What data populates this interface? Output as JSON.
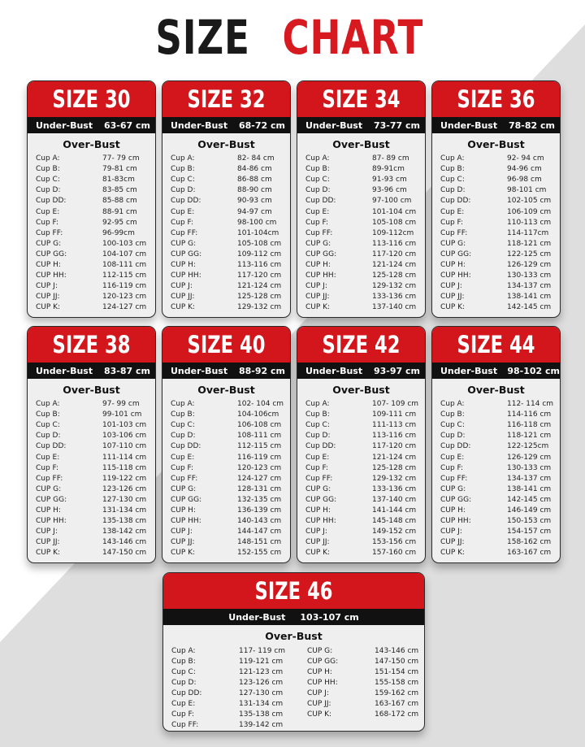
{
  "header": {
    "title_1": "SIZE",
    "title_2": "CHART"
  },
  "cards": [
    {
      "title": "SIZE 30",
      "under_bust_label": "Under-Bust",
      "under_bust": "63-67 cm",
      "over_bust_label": "Over-Bust",
      "rows": [
        [
          "Cup A:",
          "77- 79 cm"
        ],
        [
          "Cup B:",
          "79-81 cm"
        ],
        [
          "Cup C:",
          "81-83cm"
        ],
        [
          "Cup D:",
          "83-85 cm"
        ],
        [
          "Cup DD:",
          "85-88 cm"
        ],
        [
          "Cup E:",
          "88-91 cm"
        ],
        [
          "Cup F:",
          "92-95 cm"
        ],
        [
          "Cup FF:",
          "96-99cm"
        ],
        [
          "CUP G:",
          "100-103 cm"
        ],
        [
          "CUP GG:",
          "104-107 cm"
        ],
        [
          "CUP H:",
          "108-111 cm"
        ],
        [
          "CUP HH:",
          "112-115 cm"
        ],
        [
          "CUP J:",
          "116-119 cm"
        ],
        [
          "CUP JJ:",
          "120-123 cm"
        ],
        [
          "CUP K:",
          "124-127 cm"
        ]
      ]
    },
    {
      "title": "SIZE 32",
      "under_bust_label": "Under-Bust",
      "under_bust": "68-72 cm",
      "over_bust_label": "Over-Bust",
      "rows": [
        [
          "Cup A:",
          "82- 84 cm"
        ],
        [
          "Cup B:",
          "84-86 cm"
        ],
        [
          "Cup C:",
          "86-88 cm"
        ],
        [
          "Cup D:",
          "88-90 cm"
        ],
        [
          "Cup DD:",
          "90-93 cm"
        ],
        [
          "Cup E:",
          "94-97 cm"
        ],
        [
          "Cup F:",
          "98-100 cm"
        ],
        [
          "Cup FF:",
          "101-104cm"
        ],
        [
          "CUP G:",
          "105-108 cm"
        ],
        [
          "CUP GG:",
          "109-112 cm"
        ],
        [
          "CUP H:",
          "113-116 cm"
        ],
        [
          "CUP HH:",
          "117-120 cm"
        ],
        [
          "CUP J:",
          "121-124 cm"
        ],
        [
          "CUP JJ:",
          "125-128 cm"
        ],
        [
          "CUP K:",
          "129-132 cm"
        ]
      ]
    },
    {
      "title": "SIZE 34",
      "under_bust_label": "Under-Bust",
      "under_bust": "73-77 cm",
      "over_bust_label": "Over-Bust",
      "rows": [
        [
          "Cup A:",
          "87- 89 cm"
        ],
        [
          "Cup B:",
          "89-91cm"
        ],
        [
          "Cup C:",
          "91-93 cm"
        ],
        [
          "Cup D:",
          "93-96 cm"
        ],
        [
          "Cup DD:",
          "97-100 cm"
        ],
        [
          "Cup E:",
          "101-104 cm"
        ],
        [
          "Cup F:",
          "105-108 cm"
        ],
        [
          "Cup FF:",
          "109-112cm"
        ],
        [
          "CUP G:",
          "113-116 cm"
        ],
        [
          "CUP GG:",
          "117-120 cm"
        ],
        [
          "CUP H:",
          "121-124 cm"
        ],
        [
          "CUP HH:",
          "125-128 cm"
        ],
        [
          "CUP J:",
          "129-132 cm"
        ],
        [
          "CUP JJ:",
          "133-136 cm"
        ],
        [
          "CUP K:",
          "137-140 cm"
        ]
      ]
    },
    {
      "title": "SIZE 36",
      "under_bust_label": "Under-Bust",
      "under_bust": "78-82 cm",
      "over_bust_label": "Over-Bust",
      "rows": [
        [
          "Cup A:",
          "92- 94 cm"
        ],
        [
          "Cup B:",
          "94-96 cm"
        ],
        [
          "Cup C:",
          "96-98 cm"
        ],
        [
          "Cup D:",
          "98-101 cm"
        ],
        [
          "Cup DD:",
          "102-105 cm"
        ],
        [
          "Cup E:",
          "106-109 cm"
        ],
        [
          "Cup F:",
          "110-113 cm"
        ],
        [
          "Cup FF:",
          "114-117cm"
        ],
        [
          "CUP G:",
          "118-121 cm"
        ],
        [
          "CUP GG:",
          "122-125 cm"
        ],
        [
          "CUP H:",
          "126-129 cm"
        ],
        [
          "CUP HH:",
          "130-133 cm"
        ],
        [
          "CUP J:",
          "134-137 cm"
        ],
        [
          "CUP JJ:",
          "138-141 cm"
        ],
        [
          "CUP K:",
          "142-145 cm"
        ]
      ]
    },
    {
      "title": "SIZE 38",
      "under_bust_label": "Under-Bust",
      "under_bust": "83-87 cm",
      "over_bust_label": "Over-Bust",
      "rows": [
        [
          "Cup A:",
          "97- 99 cm"
        ],
        [
          "Cup B:",
          "99-101 cm"
        ],
        [
          "Cup C:",
          "101-103 cm"
        ],
        [
          "Cup D:",
          "103-106 cm"
        ],
        [
          "Cup DD:",
          "107-110 cm"
        ],
        [
          "Cup E:",
          "111-114 cm"
        ],
        [
          "Cup F:",
          "115-118 cm"
        ],
        [
          "Cup FF:",
          "119-122 cm"
        ],
        [
          "CUP G:",
          "123-126 cm"
        ],
        [
          "CUP GG:",
          "127-130 cm"
        ],
        [
          "CUP H:",
          "131-134 cm"
        ],
        [
          "CUP HH:",
          "135-138 cm"
        ],
        [
          "CUP J:",
          "138-142 cm"
        ],
        [
          "CUP JJ:",
          "143-146 cm"
        ],
        [
          "CUP K:",
          "147-150 cm"
        ]
      ]
    },
    {
      "title": "SIZE 40",
      "under_bust_label": "Under-Bust",
      "under_bust": "88-92 cm",
      "over_bust_label": "Over-Bust",
      "rows": [
        [
          "Cup A:",
          "102- 104 cm"
        ],
        [
          "Cup B:",
          "104-106cm"
        ],
        [
          "Cup C:",
          "106-108 cm"
        ],
        [
          "Cup D:",
          "108-111 cm"
        ],
        [
          "Cup DD:",
          "112-115 cm"
        ],
        [
          "Cup E:",
          "116-119 cm"
        ],
        [
          "Cup F:",
          "120-123 cm"
        ],
        [
          "Cup FF:",
          "124-127 cm"
        ],
        [
          "CUP G:",
          "128-131 cm"
        ],
        [
          "CUP GG:",
          "132-135 cm"
        ],
        [
          "CUP H:",
          "136-139 cm"
        ],
        [
          "CUP HH:",
          "140-143 cm"
        ],
        [
          "CUP J:",
          "144-147 cm"
        ],
        [
          "CUP JJ:",
          "148-151 cm"
        ],
        [
          "CUP K:",
          "152-155 cm"
        ]
      ]
    },
    {
      "title": "SIZE 42",
      "under_bust_label": "Under-Bust",
      "under_bust": "93-97 cm",
      "over_bust_label": "Over-Bust",
      "rows": [
        [
          "Cup A:",
          "107- 109 cm"
        ],
        [
          "Cup B:",
          "109-111 cm"
        ],
        [
          "Cup C:",
          "111-113 cm"
        ],
        [
          "Cup D:",
          "113-116 cm"
        ],
        [
          "Cup DD:",
          "117-120 cm"
        ],
        [
          "Cup E:",
          "121-124 cm"
        ],
        [
          "Cup F:",
          "125-128 cm"
        ],
        [
          "Cup FF:",
          "129-132 cm"
        ],
        [
          "CUP G:",
          "133-136 cm"
        ],
        [
          "CUP GG:",
          "137-140 cm"
        ],
        [
          "CUP H:",
          "141-144 cm"
        ],
        [
          "CUP HH:",
          "145-148 cm"
        ],
        [
          "CUP J:",
          "149-152 cm"
        ],
        [
          "CUP JJ:",
          "153-156 cm"
        ],
        [
          "CUP K:",
          "157-160 cm"
        ]
      ]
    },
    {
      "title": "SIZE 44",
      "under_bust_label": "Under-Bust",
      "under_bust": "98-102 cm",
      "over_bust_label": "Over-Bust",
      "rows": [
        [
          "Cup A:",
          "112- 114 cm"
        ],
        [
          "Cup B:",
          "114-116 cm"
        ],
        [
          "Cup C:",
          "116-118 cm"
        ],
        [
          "Cup D:",
          "118-121 cm"
        ],
        [
          "Cup DD:",
          "122-125cm"
        ],
        [
          "Cup E:",
          "126-129 cm"
        ],
        [
          "Cup F:",
          "130-133 cm"
        ],
        [
          "Cup FF:",
          "134-137 cm"
        ],
        [
          "CUP G:",
          "138-141 cm"
        ],
        [
          "CUP GG:",
          "142-145 cm"
        ],
        [
          "CUP H:",
          "146-149 cm"
        ],
        [
          "CUP HH:",
          "150-153 cm"
        ],
        [
          "CUP J:",
          "154-157 cm"
        ],
        [
          "CUP JJ:",
          "158-162 cm"
        ],
        [
          "CUP K:",
          "163-167 cm"
        ]
      ]
    },
    {
      "title": "SIZE 46",
      "under_bust_label": "Under-Bust",
      "under_bust": "103-107 cm",
      "over_bust_label": "Over-Bust",
      "rows": [
        [
          "Cup A:",
          "117- 119 cm"
        ],
        [
          "Cup B:",
          "119-121 cm"
        ],
        [
          "Cup C:",
          "121-123 cm"
        ],
        [
          "Cup D:",
          "123-126 cm"
        ],
        [
          "Cup DD:",
          "127-130 cm"
        ],
        [
          "Cup E:",
          "131-134 cm"
        ],
        [
          "Cup F:",
          "135-138 cm"
        ],
        [
          "Cup FF:",
          "139-142 cm"
        ],
        [
          "CUP G:",
          "143-146 cm"
        ],
        [
          "CUP GG:",
          "147-150 cm"
        ],
        [
          "CUP H:",
          "151-154 cm"
        ],
        [
          "CUP HH:",
          "155-158 cm"
        ],
        [
          "CUP J:",
          "159-162 cm"
        ],
        [
          "CUP JJ:",
          "163-167 cm"
        ],
        [
          "CUP K:",
          "168-172 cm"
        ]
      ]
    }
  ]
}
